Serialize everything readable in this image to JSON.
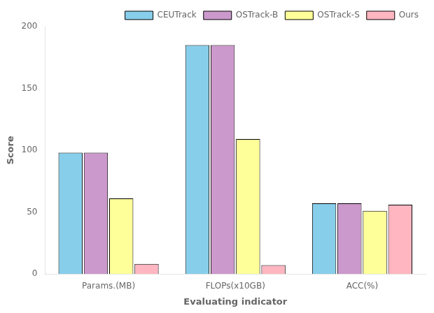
{
  "chart_data": {
    "type": "bar",
    "xlabel": "Evaluating indicator",
    "ylabel": "Score",
    "categories": [
      "Params.(MB)",
      "FLOPs(x10GB)",
      "ACC(%)"
    ],
    "series": [
      {
        "name": "CEUTrack",
        "color": "#87CEEB",
        "values": [
          98,
          185,
          57
        ]
      },
      {
        "name": "OSTrack-B",
        "color": "#CC99CC",
        "values": [
          98,
          185,
          57
        ]
      },
      {
        "name": "OSTrack-S",
        "color": "#FFFF99",
        "values": [
          61,
          109,
          51
        ]
      },
      {
        "name": "Ours",
        "color": "#FFB6C1",
        "values": [
          8,
          7,
          56
        ]
      }
    ],
    "ylim": [
      0,
      200
    ],
    "yticks": [
      0,
      50,
      100,
      150,
      200
    ],
    "grid": false,
    "legend": "upper right"
  }
}
